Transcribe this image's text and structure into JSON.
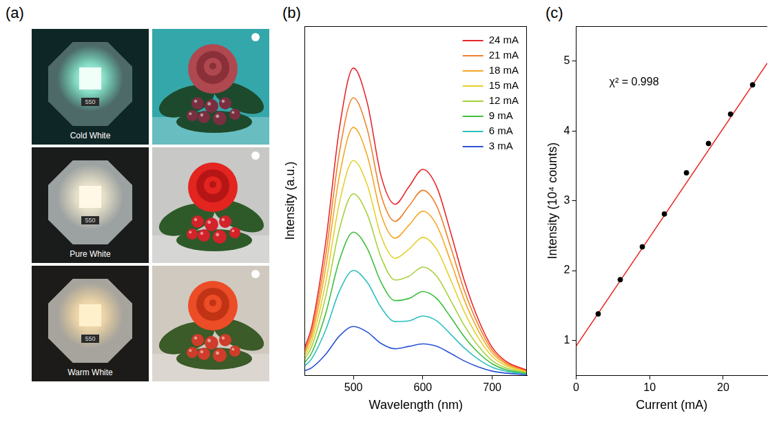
{
  "panel_a": {
    "panel_label": "(a)",
    "images": [
      {
        "caption": "Cold White",
        "board_label": "550"
      },
      {
        "caption": "Pure White",
        "board_label": "550"
      },
      {
        "caption": "Warm White",
        "board_label": "550"
      }
    ]
  },
  "chart_data": [
    {
      "panel_label": "(b)",
      "type": "line",
      "x_label": "Wavelength (nm)",
      "y_label": "Intensity (a.u.)",
      "x": [
        430,
        440,
        460,
        480,
        500,
        520,
        540,
        560,
        580,
        600,
        620,
        640,
        660,
        680,
        700,
        720,
        750
      ],
      "series": [
        {
          "name": "24 mA",
          "color": "#e8262a",
          "values": [
            8,
            14,
            38,
            71,
            88,
            78,
            57,
            49,
            54,
            59,
            54,
            41,
            27,
            16,
            8,
            4,
            1.5
          ]
        },
        {
          "name": "21 mA",
          "color": "#f07f2a",
          "values": [
            7.2,
            12.6,
            34.3,
            64.1,
            79.5,
            70.4,
            51.5,
            44.1,
            48.5,
            53,
            48.5,
            36.8,
            24.2,
            14.4,
            7.2,
            3.6,
            1.3
          ]
        },
        {
          "name": "18 mA",
          "color": "#f5a623",
          "values": [
            6.5,
            11.3,
            30.7,
            57.3,
            71,
            62.9,
            46.0,
            39.3,
            43.0,
            47,
            43.0,
            32.7,
            21.5,
            12.8,
            6.4,
            3.2,
            1.2
          ]
        },
        {
          "name": "15 mA",
          "color": "#e3d02a",
          "values": [
            5.6,
            9.8,
            26.6,
            49.6,
            61.5,
            54.5,
            39.8,
            33.5,
            36.1,
            39.5,
            36.1,
            27.4,
            18.1,
            10.7,
            5.4,
            2.7,
            1.0
          ]
        },
        {
          "name": "12 mA",
          "color": "#a6d03a",
          "values": [
            4.7,
            8.3,
            22.5,
            42.0,
            52,
            46.1,
            33.7,
            27.3,
            28.4,
            31,
            28.4,
            21.5,
            14.2,
            8.4,
            4.2,
            2.1,
            0.8
          ]
        },
        {
          "name": "9 mA",
          "color": "#3cbf3c",
          "values": [
            3.7,
            6.5,
            17.7,
            33.1,
            41,
            36.3,
            26.6,
            21.4,
            22.0,
            24,
            22.0,
            16.7,
            11.0,
            6.5,
            3.3,
            1.6,
            0.6
          ]
        },
        {
          "name": "6 mA",
          "color": "#2bbfbf",
          "values": [
            2.7,
            4.8,
            13.0,
            24.2,
            30,
            26.6,
            19.4,
            15.4,
            15.6,
            17,
            15.6,
            11.8,
            7.8,
            4.6,
            2.3,
            1.2,
            0.4
          ]
        },
        {
          "name": "3 mA",
          "color": "#2a52d6",
          "values": [
            1.3,
            2.2,
            6.0,
            11.3,
            14,
            12.4,
            9.1,
            7.6,
            8.3,
            9,
            8.3,
            6.3,
            4.1,
            2.4,
            1.2,
            0.6,
            0.2
          ]
        }
      ],
      "xlim": [
        430,
        750
      ],
      "xticks": [
        500,
        600,
        700
      ],
      "ylim": [
        0,
        100
      ],
      "tick_labels": "x",
      "grid": false,
      "legend": "top-right"
    },
    {
      "panel_label": "(c)",
      "type": "scatter",
      "x_label": "Current (mA)",
      "y_label": "Intensity (10⁴ counts)",
      "x": [
        3,
        6,
        9,
        12,
        15,
        18,
        21,
        24
      ],
      "values": [
        1.38,
        1.87,
        2.34,
        2.81,
        3.4,
        3.82,
        4.24,
        4.66
      ],
      "color": "#000000",
      "marker": "circle",
      "fit": {
        "x": [
          0,
          26
        ],
        "values": [
          0.92,
          4.97
        ],
        "color": "#e8231f"
      },
      "annotations": [
        {
          "text": "χ² = 0.998",
          "x": 4.5,
          "y": 4.7
        }
      ],
      "xlim": [
        0,
        26
      ],
      "xticks": [
        0,
        10,
        20
      ],
      "ylim": [
        0.5,
        5.5
      ],
      "yticks": [
        1,
        2,
        3,
        4,
        5
      ],
      "grid": false
    }
  ]
}
